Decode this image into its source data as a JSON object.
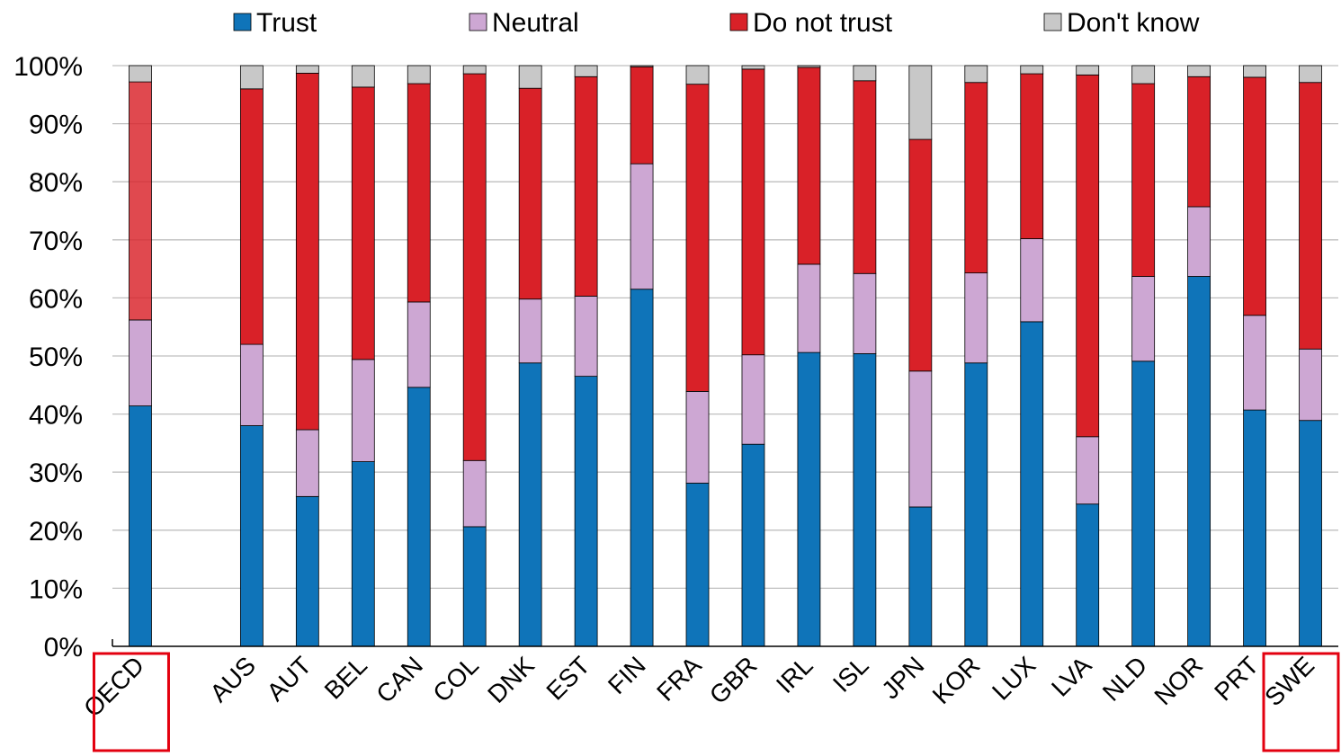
{
  "chart_data": {
    "type": "bar",
    "stacked": true,
    "title": "",
    "xlabel": "",
    "ylabel": "",
    "ylim": [
      0,
      100
    ],
    "y_ticks": [
      "0%",
      "10%",
      "20%",
      "30%",
      "40%",
      "50%",
      "60%",
      "70%",
      "80%",
      "90%",
      "100%"
    ],
    "grid": "horizontal",
    "legend_position": "top",
    "categories": [
      "OECD",
      "",
      "AUS",
      "AUT",
      "BEL",
      "CAN",
      "COL",
      "DNK",
      "EST",
      "FIN",
      "FRA",
      "GBR",
      "IRL",
      "ISL",
      "JPN",
      "KOR",
      "LUX",
      "LVA",
      "NLD",
      "NOR",
      "PRT",
      "SWE"
    ],
    "highlighted_categories": [
      "OECD",
      "SWE"
    ],
    "series": [
      {
        "name": "Trust",
        "color": "#0f74b9",
        "values": [
          41.4,
          null,
          38.0,
          25.8,
          31.8,
          44.6,
          20.6,
          48.8,
          46.5,
          61.5,
          28.1,
          34.8,
          50.6,
          50.4,
          24.0,
          48.8,
          55.9,
          24.5,
          49.1,
          63.7,
          40.7,
          38.9
        ]
      },
      {
        "name": "Neutral",
        "color": "#cda7d3",
        "values": [
          14.8,
          null,
          14.0,
          11.5,
          17.6,
          14.7,
          11.4,
          11.0,
          13.8,
          21.6,
          15.8,
          15.4,
          15.2,
          13.8,
          23.4,
          15.5,
          14.3,
          11.6,
          14.6,
          12.0,
          16.3,
          12.3
        ]
      },
      {
        "name": "Do not trust",
        "color": "#d92128",
        "values": [
          41.0,
          null,
          44.0,
          61.4,
          46.9,
          37.6,
          66.6,
          36.3,
          37.8,
          16.7,
          52.9,
          49.2,
          33.9,
          33.2,
          39.9,
          32.8,
          28.4,
          62.3,
          33.2,
          22.4,
          41.0,
          45.9
        ]
      },
      {
        "name": "Don't know",
        "color": "#c8c8c8",
        "values": [
          2.8,
          null,
          4.0,
          1.3,
          3.7,
          3.1,
          1.4,
          3.9,
          1.9,
          0.2,
          3.2,
          0.6,
          0.3,
          2.6,
          12.7,
          2.9,
          1.4,
          1.6,
          3.1,
          1.9,
          2.0,
          2.9
        ]
      }
    ]
  }
}
